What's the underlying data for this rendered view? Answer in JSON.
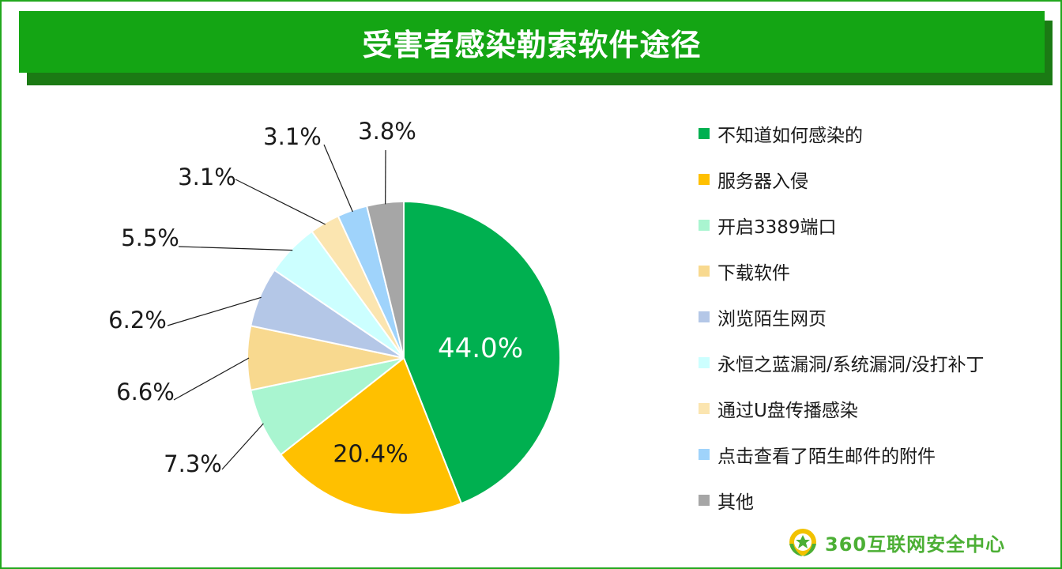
{
  "title": "受害者感染勒索软件途径",
  "brand": {
    "name": "360互联网安全中心",
    "logo_icon": "360-leaf-logo-icon"
  },
  "chart_data": {
    "type": "pie",
    "title": "受害者感染勒索软件途径",
    "legend_position": "right",
    "slices": [
      {
        "label": "不知道如何感染的",
        "value": 44.0,
        "display": "44.0%",
        "color": "#00b050"
      },
      {
        "label": "服务器入侵",
        "value": 20.4,
        "display": "20.4%",
        "color": "#ffc000"
      },
      {
        "label": "开启3389端口",
        "value": 7.3,
        "display": "7.3%",
        "color": "#a9f5d0"
      },
      {
        "label": "下载软件",
        "value": 6.6,
        "display": "6.6%",
        "color": "#f8d98f"
      },
      {
        "label": "浏览陌生网页",
        "value": 6.2,
        "display": "6.2%",
        "color": "#b4c7e7"
      },
      {
        "label": "永恒之蓝漏洞/系统漏洞/没打补丁",
        "value": 5.5,
        "display": "5.5%",
        "color": "#ccffff"
      },
      {
        "label": "通过U盘传播感染",
        "value": 3.1,
        "display": "3.1%",
        "color": "#fbe5b0"
      },
      {
        "label": "点击查看了陌生邮件的附件",
        "value": 3.1,
        "display": "3.1%",
        "color": "#9fd3fb"
      },
      {
        "label": "其他",
        "value": 3.8,
        "display": "3.8%",
        "color": "#a6a6a6"
      }
    ]
  }
}
